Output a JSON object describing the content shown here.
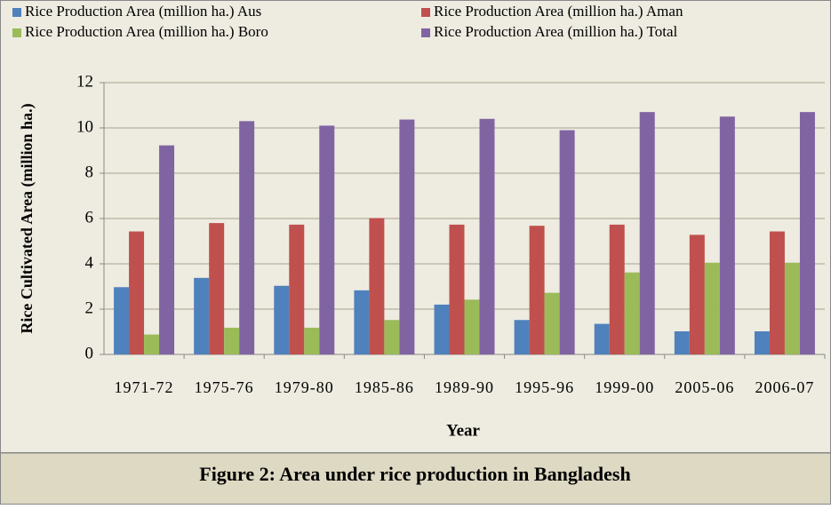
{
  "chart_data": {
    "type": "bar",
    "caption": "Figure 2: Area under rice production in Bangladesh",
    "xlabel": "Year",
    "ylabel": "Rice Cultivated Area (million ha.)",
    "categories": [
      "1971-72",
      "1975-76",
      "1979-80",
      "1985-86",
      "1989-90",
      "1995-96",
      "1999-00",
      "2005-06",
      "2006-07"
    ],
    "series": [
      {
        "name": "Rice Production Area (million ha.) Aus",
        "color": "#4f81bd",
        "values": [
          2.97,
          3.38,
          3.03,
          2.83,
          2.2,
          1.52,
          1.35,
          1.02,
          1.02
        ]
      },
      {
        "name": "Rice Production Area (million ha.) Aman",
        "color": "#c0504d",
        "values": [
          5.43,
          5.8,
          5.73,
          6.02,
          5.73,
          5.68,
          5.73,
          5.28,
          5.43
        ]
      },
      {
        "name": "Rice Production Area (million ha.) Boro",
        "color": "#9bbb59",
        "values": [
          0.88,
          1.18,
          1.18,
          1.52,
          2.42,
          2.72,
          3.62,
          4.05,
          4.05
        ]
      },
      {
        "name": "Rice Production Area (million ha.) Total",
        "color": "#8064a2",
        "values": [
          9.23,
          10.3,
          10.1,
          10.37,
          10.4,
          9.9,
          10.7,
          10.5,
          10.7
        ]
      }
    ],
    "ylim": [
      0,
      12
    ],
    "yticks": [
      0,
      2,
      4,
      6,
      8,
      10,
      12
    ],
    "grid": true,
    "legend": "top"
  }
}
